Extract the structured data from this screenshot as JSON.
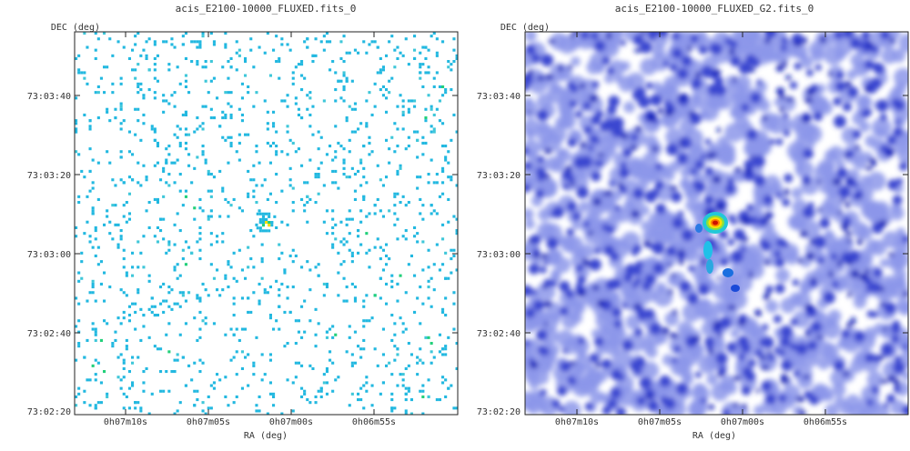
{
  "chart_data": [
    {
      "type": "heatmap",
      "title": "acis_E2100-10000_FLUXED.fits_0",
      "xlabel": "RA (deg)",
      "ylabel": "DEC (deg)",
      "x_ticks": [
        "0h07m10s",
        "0h07m05s",
        "0h07m00s",
        "0h06m55s"
      ],
      "y_ticks": [
        "73:03:40",
        "73:03:20",
        "73:03:00",
        "73:02:40",
        "73:02:20"
      ],
      "source": {
        "ra": "0h07m01.5s",
        "dec": "73:03:08"
      },
      "style": "sparse-photon-events",
      "colors": {
        "low": "#22b8e0",
        "mid": "#22d07a",
        "high": "#ffdd00",
        "peak": "#ff2200"
      }
    },
    {
      "type": "heatmap",
      "title": "acis_E2100-10000_FLUXED_G2.fits_0",
      "xlabel": "RA (deg)",
      "ylabel": "DEC (deg)",
      "x_ticks": [
        "0h07m10s",
        "0h07m05s",
        "0h07m00s",
        "0h06m55s"
      ],
      "y_ticks": [
        "73:03:40",
        "73:03:20",
        "73:03:00",
        "73:02:40",
        "73:02:20"
      ],
      "source": {
        "ra": "0h07m01.5s",
        "dec": "73:03:08"
      },
      "style": "gaussian-smoothed",
      "colors": {
        "low": "#a0a8f0",
        "mid": "#0a1cb8",
        "high": "#ffdd00",
        "peak": "#cc1100"
      }
    }
  ]
}
